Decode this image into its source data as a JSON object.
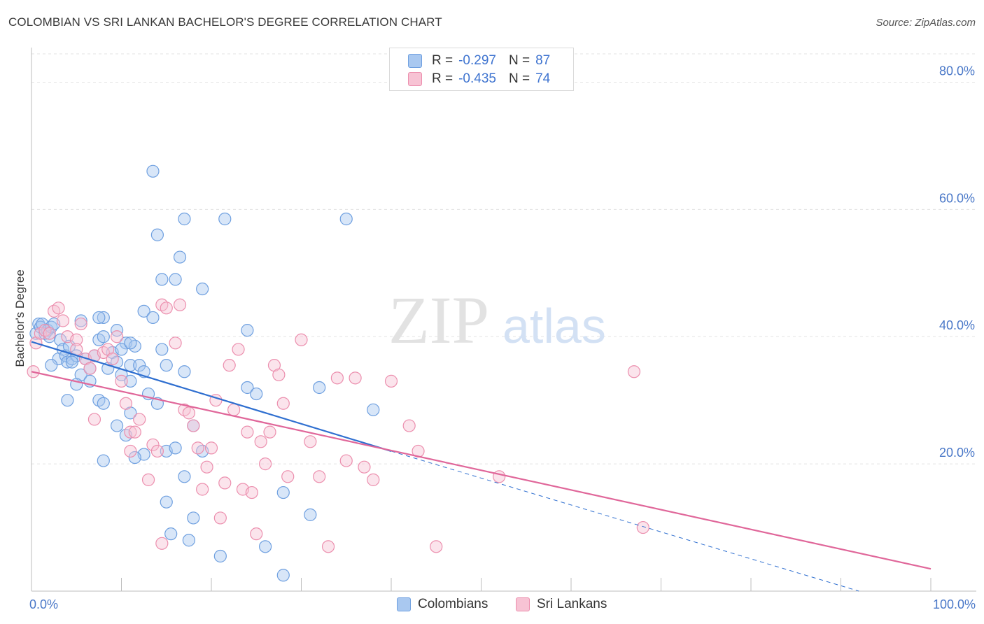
{
  "title": "COLOMBIAN VS SRI LANKAN BACHELOR'S DEGREE CORRELATION CHART",
  "source": "Source: ZipAtlas.com",
  "watermark": {
    "zip": "ZIP",
    "atlas": "atlas"
  },
  "legend": {
    "rows": [
      {
        "r_label": "R =",
        "r_value": "-0.297",
        "n_label": "N =",
        "n_value": "87",
        "color": "#a9c8f0",
        "border": "#6fa0e0"
      },
      {
        "r_label": "R =",
        "r_value": "-0.435",
        "n_label": "N =",
        "n_value": "74",
        "color": "#f7c3d4",
        "border": "#ec8fae"
      }
    ],
    "bottom": [
      {
        "label": "Colombians",
        "color": "#a9c8f0",
        "border": "#6fa0e0"
      },
      {
        "label": "Sri Lankans",
        "color": "#f7c3d4",
        "border": "#ec8fae"
      }
    ]
  },
  "chart_data": {
    "type": "scatter",
    "title": "COLOMBIAN VS SRI LANKAN BACHELOR'S DEGREE CORRELATION CHART",
    "xlabel": "",
    "ylabel": "Bachelor's Degree",
    "xlim": [
      0,
      100
    ],
    "ylim": [
      0,
      85
    ],
    "x_tick_labels": [
      "0.0%",
      "100.0%"
    ],
    "y_ticks": [
      20,
      40,
      60,
      80
    ],
    "y_tick_labels": [
      "20.0%",
      "40.0%",
      "60.0%",
      "80.0%"
    ],
    "grid": true,
    "colors": {
      "colombians": "#6fa0e0",
      "colombians_fill": "#a9c8f0",
      "colombians_line": "#2f6fd0",
      "srilankans": "#ec8fae",
      "srilankans_fill": "#f7c3d4",
      "srilankans_line": "#e0679a"
    },
    "series": [
      {
        "name": "Colombians",
        "r": -0.297,
        "n": 87,
        "trend": {
          "x0": 0,
          "y0": 39.2,
          "x1": 40,
          "y1": 22.0,
          "dash_to_x": 92,
          "dash_to_y": 0
        },
        "points": [
          [
            0.5,
            40.5
          ],
          [
            0.8,
            42
          ],
          [
            1,
            41.5
          ],
          [
            1.2,
            42
          ],
          [
            1.5,
            40.5
          ],
          [
            1.8,
            41
          ],
          [
            2,
            40
          ],
          [
            2.2,
            41.5
          ],
          [
            2.5,
            42
          ],
          [
            3,
            36.5
          ],
          [
            3.2,
            39.5
          ],
          [
            3.5,
            38
          ],
          [
            3.8,
            37
          ],
          [
            4,
            36
          ],
          [
            4.2,
            38.5
          ],
          [
            4.5,
            36.5
          ],
          [
            5,
            37
          ],
          [
            5.5,
            34
          ],
          [
            6,
            36.5
          ],
          [
            6.5,
            35
          ],
          [
            7,
            37
          ],
          [
            7.5,
            39.5
          ],
          [
            8,
            40
          ],
          [
            8.5,
            35
          ],
          [
            9,
            37.5
          ],
          [
            9.5,
            36
          ],
          [
            10,
            34
          ],
          [
            10.5,
            39
          ],
          [
            11,
            35.5
          ],
          [
            11.5,
            38.5
          ],
          [
            2.2,
            35.5
          ],
          [
            4,
            30
          ],
          [
            5,
            32.5
          ],
          [
            6.5,
            33
          ],
          [
            7.5,
            30
          ],
          [
            8,
            29.5
          ],
          [
            5.5,
            42.5
          ],
          [
            8,
            43
          ],
          [
            9.5,
            41
          ],
          [
            10,
            38
          ],
          [
            11,
            39
          ],
          [
            12,
            35.5
          ],
          [
            12.5,
            44
          ],
          [
            13.5,
            43
          ],
          [
            14.5,
            38
          ],
          [
            15,
            35.5
          ],
          [
            17,
            34.5
          ],
          [
            11,
            33
          ],
          [
            12.5,
            34.5
          ],
          [
            13,
            31
          ],
          [
            14,
            29.5
          ],
          [
            15,
            22
          ],
          [
            16,
            22.5
          ],
          [
            17,
            18
          ],
          [
            18,
            26
          ],
          [
            19,
            22
          ],
          [
            18,
            11.5
          ],
          [
            15.5,
            9
          ],
          [
            12.5,
            21.5
          ],
          [
            11,
            28
          ],
          [
            11.5,
            21
          ],
          [
            10.5,
            24.5
          ],
          [
            8,
            20.5
          ],
          [
            9.5,
            26
          ],
          [
            15,
            14
          ],
          [
            17.5,
            8
          ],
          [
            21,
            5.5
          ],
          [
            24,
            41
          ],
          [
            24,
            32
          ],
          [
            25,
            31
          ],
          [
            32,
            32
          ],
          [
            38,
            28.5
          ],
          [
            26,
            7
          ],
          [
            28,
            2.5
          ],
          [
            31,
            12
          ],
          [
            28,
            15.5
          ],
          [
            19,
            47.5
          ],
          [
            14.5,
            49
          ],
          [
            16.5,
            52.5
          ],
          [
            14,
            56
          ],
          [
            17,
            58.5
          ],
          [
            21.5,
            58.5
          ],
          [
            35,
            58.5
          ],
          [
            13.5,
            66
          ],
          [
            16,
            49
          ],
          [
            7.5,
            43
          ],
          [
            4.5,
            36
          ]
        ]
      },
      {
        "name": "Sri Lankans",
        "r": -0.435,
        "n": 74,
        "trend": {
          "x0": 0,
          "y0": 34.5,
          "x1": 100,
          "y1": 3.5
        },
        "points": [
          [
            0.2,
            34.5
          ],
          [
            0.5,
            39
          ],
          [
            1,
            40.5
          ],
          [
            1.5,
            41
          ],
          [
            2,
            40.5
          ],
          [
            2.5,
            44
          ],
          [
            3,
            44.5
          ],
          [
            3.5,
            42.5
          ],
          [
            4,
            40
          ],
          [
            5,
            39.5
          ],
          [
            5.5,
            42
          ],
          [
            6,
            36.5
          ],
          [
            6.5,
            35
          ],
          [
            7,
            37
          ],
          [
            8,
            37.5
          ],
          [
            8.5,
            38
          ],
          [
            9,
            36.5
          ],
          [
            9.5,
            40
          ],
          [
            10,
            33
          ],
          [
            10.5,
            29.5
          ],
          [
            11,
            25
          ],
          [
            11.5,
            25
          ],
          [
            12,
            27
          ],
          [
            13,
            17.5
          ],
          [
            13.5,
            23
          ],
          [
            14,
            22
          ],
          [
            14.5,
            45
          ],
          [
            15,
            44.5
          ],
          [
            16,
            39
          ],
          [
            16.5,
            45
          ],
          [
            17,
            28.5
          ],
          [
            17.5,
            28
          ],
          [
            18,
            26
          ],
          [
            18.5,
            22.5
          ],
          [
            19,
            16
          ],
          [
            19.5,
            19.5
          ],
          [
            20,
            22.5
          ],
          [
            20.5,
            30
          ],
          [
            21,
            11.5
          ],
          [
            21.5,
            17
          ],
          [
            22,
            35.5
          ],
          [
            22.5,
            28.5
          ],
          [
            23,
            38
          ],
          [
            23.5,
            16
          ],
          [
            24,
            25
          ],
          [
            24.5,
            15.5
          ],
          [
            25,
            9
          ],
          [
            25.5,
            23.5
          ],
          [
            26,
            20
          ],
          [
            26.5,
            25
          ],
          [
            27,
            35.5
          ],
          [
            27.5,
            34
          ],
          [
            28,
            29.5
          ],
          [
            28.5,
            18
          ],
          [
            30,
            39.5
          ],
          [
            31,
            23.5
          ],
          [
            32,
            18
          ],
          [
            33,
            7
          ],
          [
            34,
            33.5
          ],
          [
            35,
            20.5
          ],
          [
            36,
            33.5
          ],
          [
            37,
            19.5
          ],
          [
            38,
            17.5
          ],
          [
            40,
            33
          ],
          [
            42,
            26
          ],
          [
            43,
            22
          ],
          [
            45,
            7
          ],
          [
            52,
            18
          ],
          [
            67,
            34.5
          ],
          [
            68,
            10
          ],
          [
            7,
            27
          ],
          [
            5,
            38
          ],
          [
            11,
            22
          ],
          [
            14.5,
            7.5
          ]
        ]
      }
    ]
  }
}
